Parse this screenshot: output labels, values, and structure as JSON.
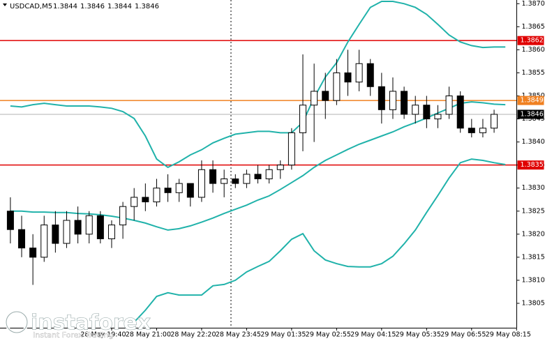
{
  "chart_data": {
    "type": "candlestick",
    "title": "USDCAD,M5",
    "header_values": [
      1.3844,
      1.3846,
      1.3844,
      1.3846
    ],
    "categories": [
      null,
      null,
      null,
      null,
      null,
      null,
      null,
      null,
      null,
      "28 May 19:40",
      null,
      null,
      null,
      "28 May 21:00",
      null,
      null,
      null,
      "28 May 22:20",
      null,
      null,
      null,
      "28 May 23:45",
      null,
      null,
      null,
      "29 May 01:35",
      null,
      null,
      null,
      "29 May 02:55",
      null,
      null,
      null,
      "29 May 04:15",
      null,
      null,
      null,
      "29 May 05:35",
      null,
      null,
      null,
      "29 May 06:55",
      null,
      null,
      null,
      "29 May 08:15"
    ],
    "open": [
      1.3825,
      1.3821,
      1.3817,
      1.3815,
      1.3822,
      1.3818,
      1.3823,
      1.382,
      1.3824,
      1.3819,
      1.3822,
      1.3826,
      1.3828,
      1.3827,
      1.383,
      1.3829,
      1.3831,
      1.3828,
      1.3834,
      1.3831,
      1.3832,
      1.3831,
      1.3833,
      1.3832,
      1.3834,
      1.3835,
      1.3842,
      1.3848,
      1.3851,
      1.3849,
      1.3855,
      1.3853,
      1.3857,
      1.3852,
      1.3847,
      1.3851,
      1.3846,
      1.3848,
      1.3845,
      1.3846,
      1.385,
      1.3843,
      1.3842,
      1.3843,
      null,
      null
    ],
    "high": [
      1.3828,
      1.3824,
      1.382,
      1.3824,
      1.3825,
      1.3825,
      1.3826,
      1.3825,
      1.3825,
      1.3823,
      1.3827,
      1.383,
      1.3831,
      1.3832,
      1.3833,
      1.3832,
      1.3831,
      1.3836,
      1.3836,
      1.3834,
      1.3833,
      1.3834,
      1.3835,
      1.3835,
      1.3836,
      1.3843,
      1.3859,
      1.3857,
      1.3855,
      1.3858,
      1.386,
      1.386,
      1.3858,
      1.3855,
      1.3854,
      1.3852,
      1.385,
      1.385,
      1.3848,
      1.3852,
      1.3851,
      1.3845,
      1.3845,
      1.3847,
      null,
      null
    ],
    "low": [
      1.3818,
      1.3815,
      1.3809,
      1.3814,
      1.3816,
      1.3817,
      1.3818,
      1.3818,
      1.3818,
      1.3817,
      1.3819,
      1.3823,
      1.3825,
      1.3826,
      1.3827,
      1.3827,
      1.3826,
      1.3827,
      1.3829,
      1.3828,
      1.383,
      1.383,
      1.3831,
      1.3831,
      1.3832,
      1.3834,
      1.3838,
      1.384,
      1.3845,
      1.3848,
      1.385,
      1.3851,
      1.385,
      1.3844,
      1.3845,
      1.3845,
      1.3844,
      1.3843,
      1.3843,
      1.3845,
      1.3842,
      1.3841,
      1.3841,
      1.3842,
      null,
      null
    ],
    "close": [
      1.3821,
      1.3817,
      1.3815,
      1.3822,
      1.3818,
      1.3823,
      1.382,
      1.3824,
      1.3819,
      1.3822,
      1.3826,
      1.3828,
      1.3827,
      1.383,
      1.3829,
      1.3831,
      1.3828,
      1.3834,
      1.3831,
      1.3832,
      1.3831,
      1.3833,
      1.3832,
      1.3834,
      1.3835,
      1.3842,
      1.3848,
      1.3851,
      1.3849,
      1.3855,
      1.3853,
      1.3857,
      1.3852,
      1.3847,
      1.3851,
      1.3846,
      1.3848,
      1.3845,
      1.3846,
      1.385,
      1.3843,
      1.3842,
      1.3843,
      1.3846,
      null,
      null
    ],
    "candle_color": "#000000",
    "series": [
      {
        "color": "#20b2aa",
        "values": [
          1.38478,
          1.38476,
          1.38481,
          1.38484,
          1.38481,
          1.38478,
          1.38478,
          1.38478,
          1.38476,
          1.38473,
          1.38466,
          1.38451,
          1.38413,
          1.38363,
          1.38345,
          1.38357,
          1.38372,
          1.38383,
          1.38398,
          1.38408,
          1.38417,
          1.3842,
          1.38423,
          1.38423,
          1.3842,
          1.3842,
          1.38443,
          1.38496,
          1.38541,
          1.38572,
          1.38617,
          1.38655,
          1.38692,
          1.38705,
          1.38705,
          1.387,
          1.38692,
          1.38677,
          1.38655,
          1.38632,
          1.38617,
          1.38609,
          1.38605,
          1.38606,
          1.38606,
          null
        ]
      },
      {
        "color": "#20b2aa",
        "values": [
          1.3825,
          1.3825,
          1.38248,
          1.38248,
          1.38247,
          1.38247,
          1.38245,
          1.38244,
          1.38242,
          1.38239,
          1.38235,
          1.3823,
          1.38224,
          1.38216,
          1.38209,
          1.38212,
          1.38218,
          1.38226,
          1.38235,
          1.38245,
          1.38254,
          1.38263,
          1.38274,
          1.38283,
          1.38297,
          1.38312,
          1.38327,
          1.38345,
          1.3836,
          1.38372,
          1.38384,
          1.38395,
          1.38404,
          1.38413,
          1.38422,
          1.38433,
          1.38442,
          1.38452,
          1.38463,
          1.38473,
          1.38484,
          1.38487,
          1.38485,
          1.38482,
          1.38481,
          null
        ]
      },
      {
        "color": "#20b2aa",
        "values": [
          null,
          null,
          null,
          null,
          null,
          null,
          null,
          null,
          null,
          null,
          null,
          1.38009,
          1.38035,
          1.38065,
          1.38073,
          1.38068,
          1.38068,
          1.38068,
          1.38088,
          1.38091,
          1.381,
          1.38118,
          1.3813,
          1.38141,
          1.38164,
          1.38189,
          1.38201,
          1.38164,
          1.38144,
          1.38136,
          1.3813,
          1.38129,
          1.38129,
          1.38136,
          1.38152,
          1.38179,
          1.38209,
          1.38247,
          1.38284,
          1.38322,
          1.38355,
          1.38363,
          1.3836,
          1.38355,
          1.38351,
          null
        ]
      }
    ],
    "levels": [
      {
        "value": 1.3862,
        "color": "#e00000"
      },
      {
        "value": 1.3849,
        "color": "#f08020"
      },
      {
        "value": 1.3846,
        "color": "#000000"
      },
      {
        "value": 1.3835,
        "color": "#e00000"
      }
    ],
    "ylim": [
      1.37997,
      1.38708
    ],
    "yticks": [
      {
        "value": 1.387,
        "label": "1.3870"
      },
      1.3865,
      {
        "value": 1.386,
        "label": "1.3860"
      },
      1.3855,
      {
        "value": 1.385,
        "label": "1.3850"
      },
      1.3845,
      {
        "value": 1.384,
        "label": "1.3840"
      },
      1.3835,
      {
        "value": 1.383,
        "label": "1.3830"
      },
      1.3825,
      {
        "value": 1.382,
        "label": "1.3820"
      },
      1.3815,
      {
        "value": 1.381,
        "label": "1.3810"
      },
      1.3805
    ]
  },
  "logo": {
    "name": "instaforex",
    "tagline": "Instant Forex Trading"
  }
}
